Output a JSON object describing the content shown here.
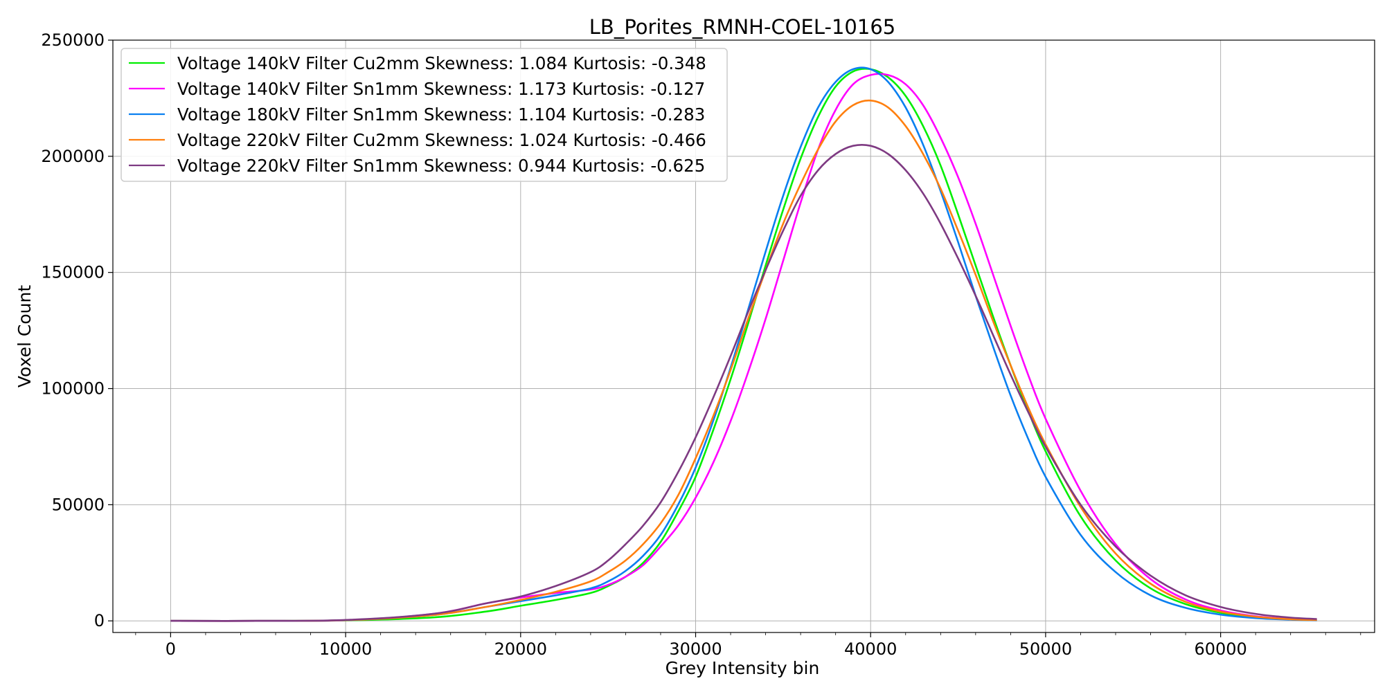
{
  "chart_data": {
    "type": "line",
    "title": "LB_Porites_RMNH-COEL-10165",
    "xlabel": "Grey Intensity bin",
    "ylabel": "Voxel Count",
    "xlim": [
      -3300,
      68800
    ],
    "ylim": [
      -5000,
      250000
    ],
    "xticks": [
      0,
      10000,
      20000,
      30000,
      40000,
      50000,
      60000
    ],
    "yticks": [
      0,
      50000,
      100000,
      150000,
      200000,
      250000
    ],
    "xtick_labels": [
      "0",
      "10000",
      "20000",
      "30000",
      "40000",
      "50000",
      "60000"
    ],
    "ytick_labels": [
      "0",
      "50000",
      "100000",
      "150000",
      "200000",
      "250000"
    ],
    "grid": true,
    "legend_position": "top-left",
    "series": [
      {
        "name": "Voltage 140kV Filter Cu2mm Skewness: 1.084 Kurtosis: -0.348",
        "color": "#00ee00",
        "x": [
          0,
          5000,
          10000,
          15000,
          18000,
          20000,
          22000,
          24000,
          25000,
          26000,
          27000,
          28000,
          29000,
          30000,
          31000,
          32000,
          33000,
          34000,
          35000,
          36000,
          37000,
          38000,
          39000,
          40000,
          41000,
          42000,
          43000,
          44000,
          45000,
          46000,
          47000,
          48000,
          49000,
          50000,
          52000,
          54000,
          56000,
          58000,
          60000,
          62000,
          64000,
          65500
        ],
        "y": [
          0,
          0,
          200,
          1500,
          4000,
          6500,
          9000,
          12000,
          15000,
          19000,
          25000,
          34000,
          47000,
          62000,
          82000,
          104000,
          128000,
          153000,
          177000,
          199000,
          217000,
          230000,
          236500,
          237500,
          234000,
          226000,
          213000,
          196000,
          175000,
          153000,
          131000,
          110000,
          90500,
          73000,
          45000,
          26000,
          14000,
          7200,
          3500,
          1500,
          600,
          300
        ]
      },
      {
        "name": "Voltage 140kV Filter Sn1mm Skewness: 1.173 Kurtosis: -0.127",
        "color": "#ff00ff",
        "x": [
          0,
          5000,
          10000,
          15000,
          18000,
          20000,
          22000,
          24000,
          25000,
          26000,
          27000,
          28000,
          29000,
          30000,
          31000,
          32000,
          33000,
          34000,
          35000,
          36000,
          37000,
          38000,
          39000,
          40000,
          41000,
          42000,
          43000,
          44000,
          45000,
          46000,
          47000,
          48000,
          49000,
          50000,
          52000,
          54000,
          56000,
          58000,
          60000,
          62000,
          64000,
          65500
        ],
        "y": [
          0,
          0,
          300,
          3000,
          7500,
          10000,
          12000,
          13500,
          15500,
          19000,
          24000,
          32000,
          41000,
          53000,
          68000,
          86000,
          107000,
          130000,
          155000,
          180000,
          203000,
          220000,
          231000,
          235000,
          235000,
          231000,
          222000,
          208000,
          191000,
          171000,
          149000,
          127000,
          106000,
          87000,
          56000,
          33000,
          18000,
          9200,
          4500,
          2000,
          800,
          400
        ]
      },
      {
        "name": "Voltage 180kV Filter Sn1mm Skewness: 1.104 Kurtosis: -0.283",
        "color": "#0a7ff0",
        "x": [
          0,
          5000,
          10000,
          15000,
          18000,
          20000,
          22000,
          24000,
          25000,
          26000,
          27000,
          28000,
          29000,
          30000,
          31000,
          32000,
          33000,
          34000,
          35000,
          36000,
          37000,
          38000,
          39000,
          40000,
          41000,
          42000,
          43000,
          44000,
          45000,
          46000,
          47000,
          48000,
          49000,
          50000,
          52000,
          54000,
          56000,
          58000,
          60000,
          62000,
          64000,
          65500
        ],
        "y": [
          0,
          0,
          300,
          2500,
          6000,
          8500,
          11000,
          14000,
          17000,
          21500,
          28000,
          37000,
          50000,
          66000,
          86000,
          109000,
          134000,
          159000,
          183000,
          204000,
          221000,
          232000,
          237500,
          237500,
          232000,
          221000,
          205000,
          185000,
          163000,
          140000,
          118000,
          97000,
          78500,
          62000,
          37000,
          21000,
          11000,
          5600,
          2700,
          1200,
          500,
          250
        ]
      },
      {
        "name": "Voltage 220kV Filter Cu2mm Skewness: 1.024 Kurtosis: -0.466",
        "color": "#ff7f0e",
        "x": [
          0,
          5000,
          10000,
          15000,
          18000,
          20000,
          22000,
          24000,
          25000,
          26000,
          27000,
          28000,
          29000,
          30000,
          31000,
          32000,
          33000,
          34000,
          35000,
          36000,
          37000,
          38000,
          39000,
          40000,
          41000,
          42000,
          43000,
          44000,
          45000,
          46000,
          47000,
          48000,
          49000,
          50000,
          52000,
          54000,
          56000,
          58000,
          60000,
          62000,
          64000,
          65500
        ],
        "y": [
          0,
          0,
          300,
          2500,
          6000,
          9000,
          12500,
          17000,
          21000,
          26000,
          33000,
          42000,
          54000,
          70000,
          88000,
          108000,
          130000,
          151000,
          171000,
          188000,
          203000,
          215000,
          222000,
          224000,
          221000,
          213000,
          201000,
          186000,
          168000,
          149000,
          129000,
          110000,
          92000,
          76000,
          49000,
          29000,
          16000,
          8200,
          4000,
          1800,
          700,
          350
        ]
      },
      {
        "name": "Voltage 220kV Filter Sn1mm Skewness: 0.944 Kurtosis: -0.625",
        "color": "#7e3a82",
        "x": [
          0,
          5000,
          10000,
          15000,
          18000,
          20000,
          22000,
          24000,
          25000,
          26000,
          27000,
          28000,
          29000,
          30000,
          31000,
          32000,
          33000,
          34000,
          35000,
          36000,
          37000,
          38000,
          39000,
          40000,
          41000,
          42000,
          43000,
          44000,
          45000,
          46000,
          47000,
          48000,
          49000,
          50000,
          52000,
          54000,
          56000,
          58000,
          60000,
          62000,
          64000,
          65500
        ],
        "y": [
          0,
          0,
          400,
          3000,
          7500,
          10500,
          15000,
          21000,
          26000,
          33000,
          41000,
          51000,
          64000,
          79000,
          96000,
          114000,
          133000,
          151000,
          168000,
          183000,
          194000,
          201000,
          204500,
          204500,
          201000,
          194000,
          184000,
          171000,
          156000,
          140000,
          123000,
          106000,
          90000,
          75000,
          50000,
          32000,
          19500,
          11000,
          6000,
          3000,
          1400,
          800
        ]
      }
    ]
  }
}
